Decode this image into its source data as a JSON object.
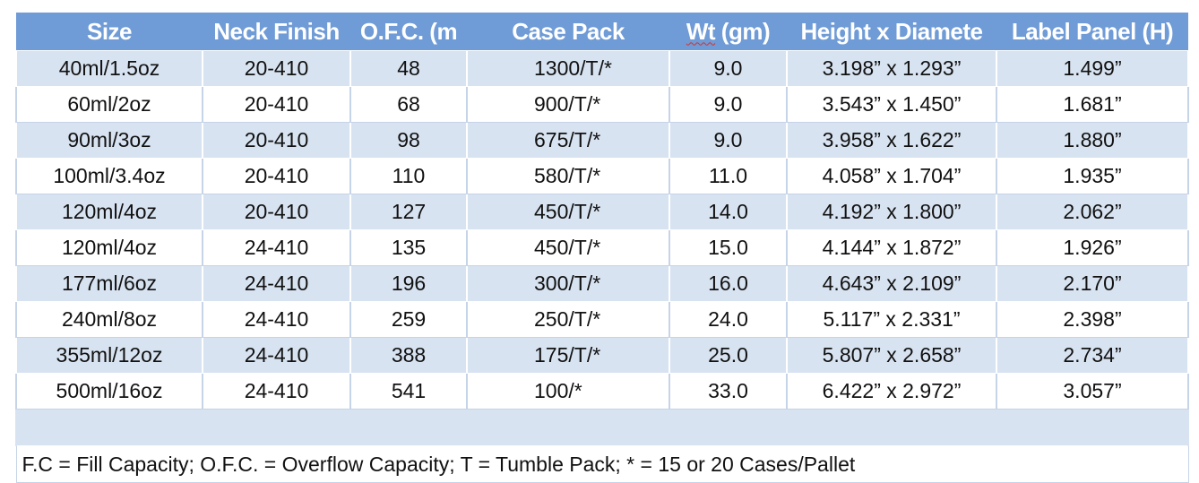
{
  "table": {
    "headers": [
      "Size",
      "Neck Finish",
      "O.F.C. (m",
      "Case Pack",
      "Wt (gm)",
      "Height x Diamete",
      "Label Panel (H)"
    ],
    "header_wt_marked": "Wt",
    "header_wt_rest": " (gm)",
    "rows": [
      [
        "40ml/1.5oz",
        "20-410",
        "48",
        "1300/T/*",
        "9.0",
        "3.198” x 1.293”",
        "1.499”"
      ],
      [
        "60ml/2oz",
        "20-410",
        "68",
        "900/T/*",
        "9.0",
        "3.543” x 1.450”",
        "1.681”"
      ],
      [
        "90ml/3oz",
        "20-410",
        "98",
        "675/T/*",
        "9.0",
        "3.958” x 1.622”",
        "1.880”"
      ],
      [
        "100ml/3.4oz",
        "20-410",
        "110",
        "580/T/*",
        "11.0",
        "4.058” x 1.704”",
        "1.935”"
      ],
      [
        "120ml/4oz",
        "20-410",
        "127",
        "450/T/*",
        "14.0",
        "4.192” x 1.800”",
        "2.062”"
      ],
      [
        "120ml/4oz",
        "24-410",
        "135",
        "450/T/*",
        "15.0",
        "4.144” x 1.872”",
        "1.926”"
      ],
      [
        "177ml/6oz",
        "24-410",
        "196",
        "300/T/*",
        "16.0",
        "4.643” x 2.109”",
        "2.170”"
      ],
      [
        "240ml/8oz",
        "24-410",
        "259",
        "250/T/*",
        "24.0",
        "5.117” x 2.331”",
        "2.398”"
      ],
      [
        "355ml/12oz",
        "24-410",
        "388",
        "175/T/*",
        "25.0",
        "5.807” x 2.658”",
        "2.734”"
      ],
      [
        "500ml/16oz",
        "24-410",
        "541",
        "100/*",
        "33.0",
        "6.422” x 2.972”",
        "3.057”"
      ]
    ],
    "footnote": "F.C = Fill Capacity; O.F.C. = Overflow Capacity; T = Tumble Pack; * = 15 or 20 Cases/Pallet"
  },
  "colors": {
    "header_bg": "#6f9bd6",
    "header_text": "#ffffff",
    "band_row": "#d8e3f1",
    "plain_row": "#ffffff",
    "spellcheck_underline": "#d9302a"
  }
}
